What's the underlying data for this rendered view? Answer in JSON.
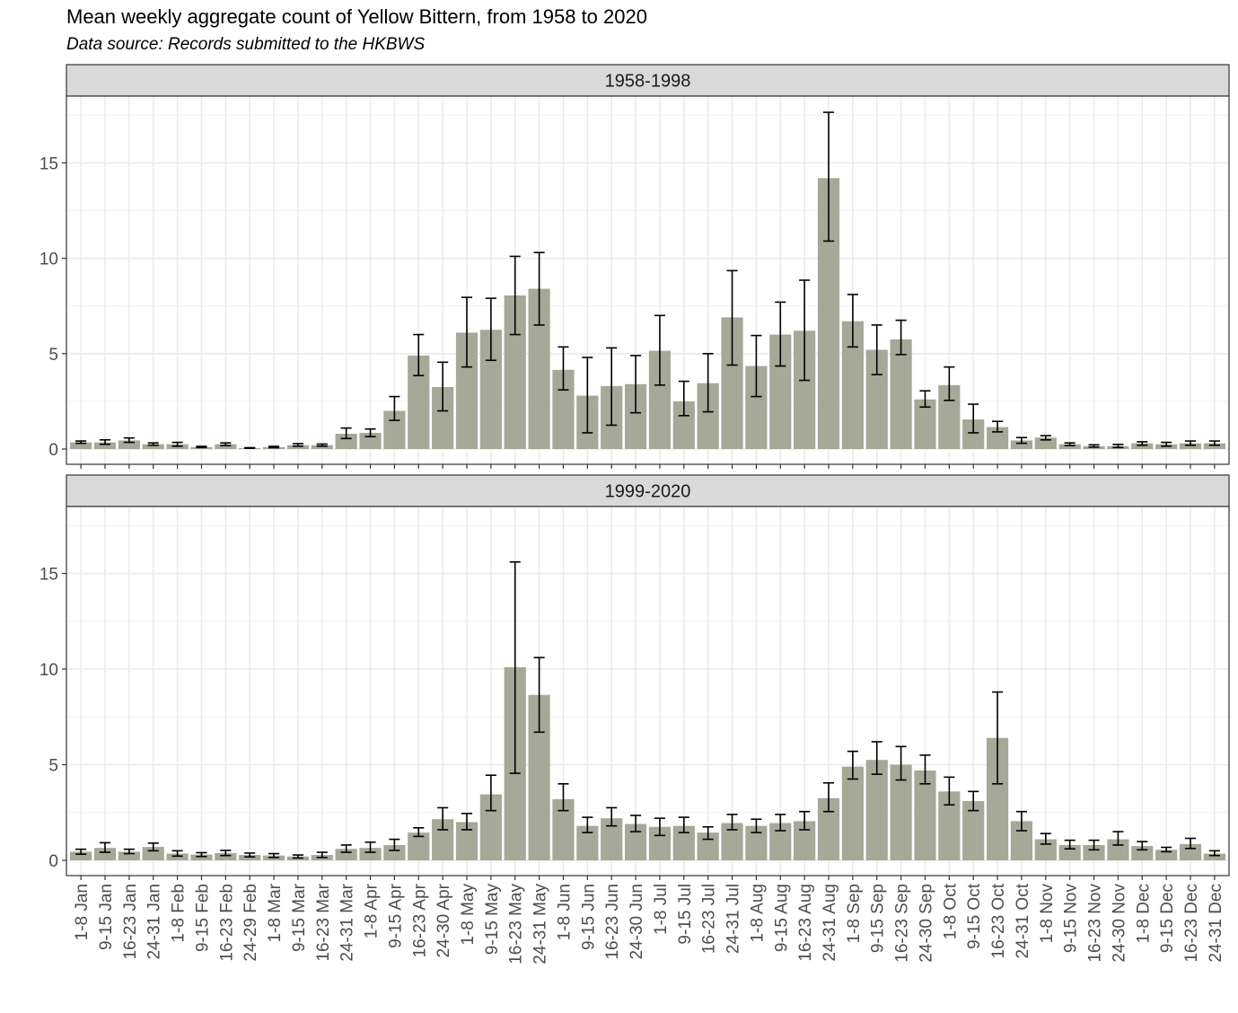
{
  "title": "Mean weekly aggregate count of Yellow Bittern, from 1958 to 2020",
  "subtitle": "Data source: Records submitted to the HKBWS",
  "chart_data": {
    "type": "bar",
    "bar_color": "#a6a898",
    "error_bar_color": "#000000",
    "strip_color": "#d9d9d9",
    "grid": true,
    "ylim": [
      0,
      18.5
    ],
    "yticks": [
      0,
      5,
      10,
      15
    ],
    "categories": [
      "1-8 Jan",
      "9-15 Jan",
      "16-23 Jan",
      "24-31 Jan",
      "1-8 Feb",
      "9-15 Feb",
      "16-23 Feb",
      "24-29 Feb",
      "1-8 Mar",
      "9-15 Mar",
      "16-23 Mar",
      "24-31 Mar",
      "1-8 Apr",
      "9-15 Apr",
      "16-23 Apr",
      "24-30 Apr",
      "1-8 May",
      "9-15 May",
      "16-23 May",
      "24-31 May",
      "1-8 Jun",
      "9-15 Jun",
      "16-23 Jun",
      "24-30 Jun",
      "1-8 Jul",
      "9-15 Jul",
      "16-23 Jul",
      "24-31 Jul",
      "1-8 Aug",
      "9-15 Aug",
      "16-23 Aug",
      "24-31 Aug",
      "1-8 Sep",
      "9-15 Sep",
      "16-23 Sep",
      "24-30 Sep",
      "1-8 Oct",
      "9-15 Oct",
      "16-23 Oct",
      "24-31 Oct",
      "1-8 Nov",
      "9-15 Nov",
      "16-23 Nov",
      "24-30 Nov",
      "1-8 Dec",
      "9-15 Dec",
      "16-23 Dec",
      "24-31 Dec"
    ],
    "panels": [
      {
        "label": "1958-1998",
        "values": [
          0.35,
          0.35,
          0.45,
          0.25,
          0.25,
          0.1,
          0.25,
          0.05,
          0.1,
          0.2,
          0.2,
          0.8,
          0.85,
          2.0,
          4.9,
          3.25,
          6.1,
          6.25,
          8.05,
          8.4,
          4.15,
          2.8,
          3.3,
          3.4,
          5.15,
          2.5,
          3.45,
          6.9,
          4.35,
          6.0,
          6.2,
          14.2,
          6.7,
          5.2,
          5.75,
          2.6,
          3.35,
          1.55,
          1.15,
          0.45,
          0.6,
          0.25,
          0.15,
          0.15,
          0.3,
          0.25,
          0.3,
          0.3
        ],
        "err_low": [
          0.3,
          0.25,
          0.35,
          0.2,
          0.15,
          0.08,
          0.18,
          0.04,
          0.07,
          0.15,
          0.15,
          0.55,
          0.65,
          1.5,
          3.85,
          2.0,
          4.3,
          4.65,
          6.0,
          6.5,
          3.1,
          0.85,
          1.25,
          1.9,
          3.35,
          1.75,
          1.95,
          4.4,
          2.75,
          4.35,
          3.6,
          10.9,
          5.35,
          3.9,
          4.95,
          2.2,
          2.55,
          0.85,
          0.9,
          0.3,
          0.48,
          0.18,
          0.1,
          0.08,
          0.2,
          0.15,
          0.2,
          0.2
        ],
        "err_high": [
          0.42,
          0.48,
          0.58,
          0.32,
          0.35,
          0.14,
          0.32,
          0.07,
          0.14,
          0.28,
          0.26,
          1.1,
          1.05,
          2.75,
          6.0,
          4.55,
          7.95,
          7.9,
          10.1,
          10.3,
          5.35,
          4.8,
          5.3,
          4.9,
          7.0,
          3.55,
          5.0,
          9.35,
          5.95,
          7.7,
          8.85,
          17.65,
          8.1,
          6.5,
          6.75,
          3.05,
          4.3,
          2.35,
          1.45,
          0.6,
          0.7,
          0.32,
          0.22,
          0.24,
          0.38,
          0.35,
          0.42,
          0.42
        ]
      },
      {
        "label": "1999-2020",
        "values": [
          0.45,
          0.65,
          0.45,
          0.7,
          0.35,
          0.3,
          0.38,
          0.28,
          0.25,
          0.2,
          0.28,
          0.6,
          0.65,
          0.8,
          1.45,
          2.15,
          2.0,
          3.45,
          10.1,
          8.65,
          3.2,
          1.8,
          2.2,
          1.9,
          1.75,
          1.8,
          1.45,
          1.95,
          1.8,
          1.95,
          2.05,
          3.25,
          4.9,
          5.25,
          5.0,
          4.7,
          3.6,
          3.1,
          6.4,
          2.05,
          1.1,
          0.8,
          0.8,
          1.1,
          0.75,
          0.55,
          0.85,
          0.35
        ],
        "err_low": [
          0.32,
          0.42,
          0.35,
          0.5,
          0.22,
          0.2,
          0.25,
          0.18,
          0.15,
          0.12,
          0.15,
          0.42,
          0.42,
          0.52,
          1.25,
          1.6,
          1.6,
          2.6,
          4.55,
          6.7,
          2.6,
          1.45,
          1.8,
          1.5,
          1.3,
          1.45,
          1.1,
          1.6,
          1.45,
          1.55,
          1.6,
          2.55,
          4.25,
          4.5,
          4.2,
          4.0,
          2.9,
          2.6,
          4.0,
          1.55,
          0.85,
          0.6,
          0.55,
          0.8,
          0.55,
          0.45,
          0.62,
          0.25
        ],
        "err_high": [
          0.58,
          0.92,
          0.58,
          0.9,
          0.5,
          0.4,
          0.52,
          0.38,
          0.35,
          0.28,
          0.42,
          0.8,
          0.95,
          1.1,
          1.7,
          2.75,
          2.45,
          4.45,
          15.6,
          10.6,
          4.0,
          2.25,
          2.75,
          2.35,
          2.2,
          2.25,
          1.75,
          2.4,
          2.15,
          2.4,
          2.55,
          4.05,
          5.7,
          6.2,
          5.95,
          5.5,
          4.35,
          3.6,
          8.8,
          2.55,
          1.4,
          1.05,
          1.05,
          1.5,
          0.98,
          0.68,
          1.15,
          0.5
        ]
      }
    ]
  }
}
